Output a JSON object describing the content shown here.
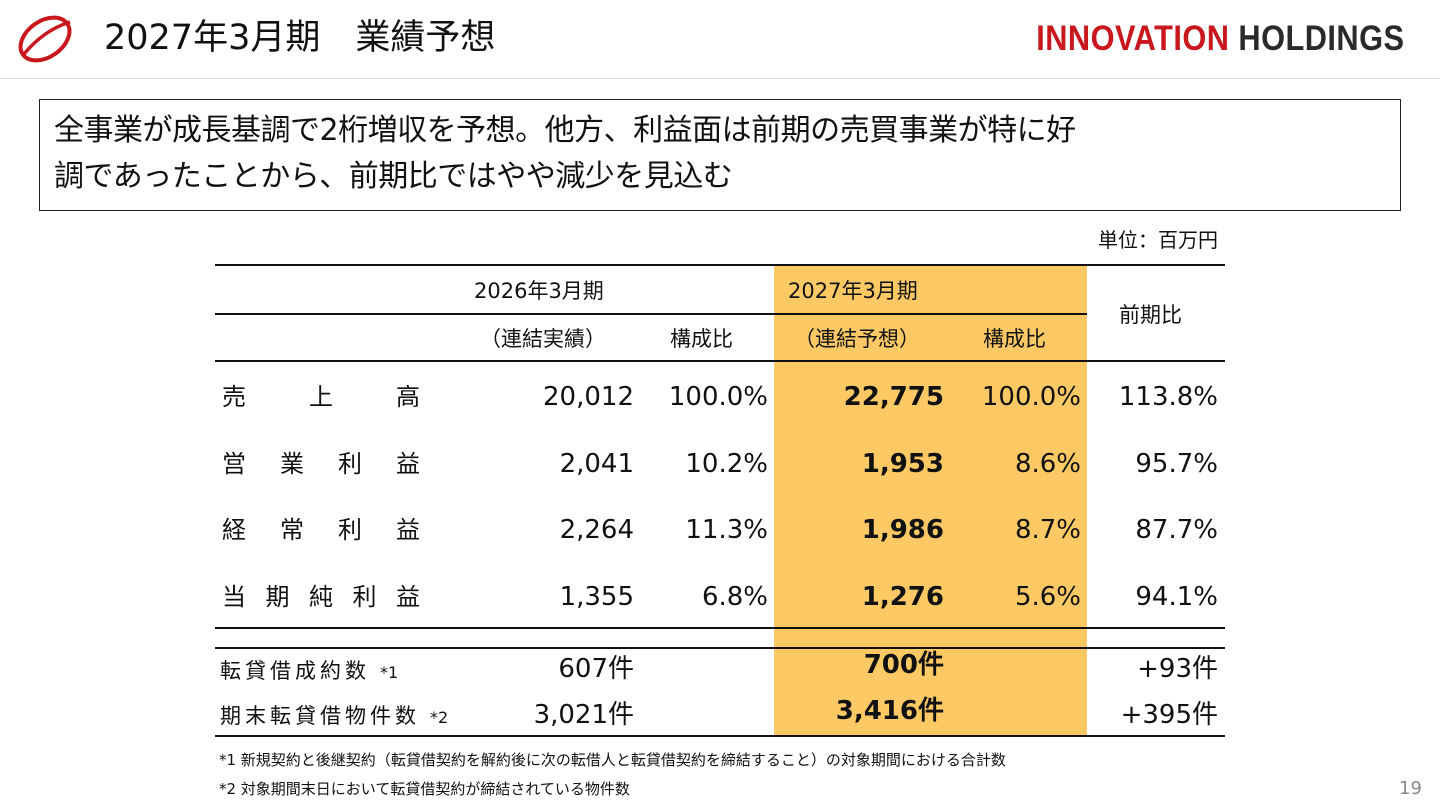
{
  "header": {
    "title": "2027年3月期　業績予想",
    "brand_a": "INNOVATION",
    "brand_b": "HOLDINGS"
  },
  "summary": {
    "line1": "全事業が成長基調で2桁増収を予想。他方、利益面は前期の売買事業が特に好",
    "line2": "調であったことから、前期比ではやや減少を見込む"
  },
  "unit": "単位：百万円",
  "table": {
    "col_prev_period": "2026年3月期",
    "col_curr_period": "2027年3月期",
    "col_yoy": "前期比",
    "sub_prev_actual": "（連結実績）",
    "sub_prev_ratio": "構成比",
    "sub_curr_forecast": "（連結予想）",
    "sub_curr_ratio": "構成比",
    "rows": [
      {
        "label_chars": [
          "売",
          "上",
          "高"
        ],
        "prev": "20,012",
        "prev_ratio": "100.0%",
        "curr": "22,775",
        "curr_ratio": "100.0%",
        "yoy": "113.8%"
      },
      {
        "label_chars": [
          "営",
          "業",
          "利",
          "益"
        ],
        "prev": "2,041",
        "prev_ratio": "10.2%",
        "curr": "1,953",
        "curr_ratio": "8.6%",
        "yoy": "95.7%"
      },
      {
        "label_chars": [
          "経",
          "常",
          "利",
          "益"
        ],
        "prev": "2,264",
        "prev_ratio": "11.3%",
        "curr": "1,986",
        "curr_ratio": "8.7%",
        "yoy": "87.7%"
      },
      {
        "label_chars": [
          "当",
          "期",
          "純",
          "利",
          "益"
        ],
        "prev": "1,355",
        "prev_ratio": "6.8%",
        "curr": "1,276",
        "curr_ratio": "5.6%",
        "yoy": "94.1%"
      }
    ],
    "kpis": [
      {
        "label": "転貸借成約数",
        "note": "*1",
        "prev": "607件",
        "curr": "700件",
        "yoy": "+93件"
      },
      {
        "label": "期末転貸借物件数",
        "note": "*2",
        "prev": "3,021件",
        "curr": "3,416件",
        "yoy": "+395件"
      }
    ]
  },
  "footnotes": [
    "*1 新規契約と後継契約（転貸借契約を解約後に次の転借人と転貸借契約を締結すること）の対象期間における合計数",
    "*2 対象期間末日において転貸借契約が締結されている物件数"
  ],
  "page_number": "19"
}
